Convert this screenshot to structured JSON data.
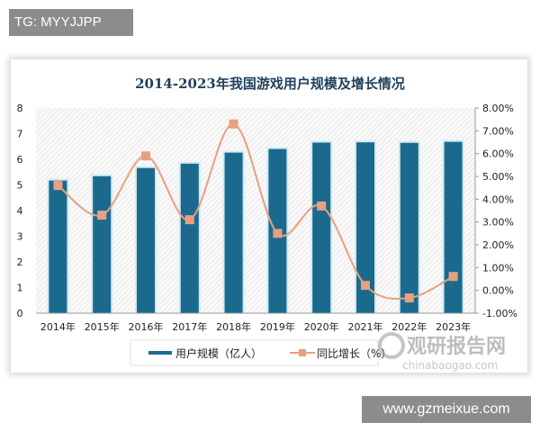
{
  "watermarks": {
    "top": "TG: MYYJJPP",
    "bottom": "www.gzmeixue.com",
    "logo_cn": "观研报告网",
    "logo_en": "chinabaogao.com"
  },
  "chart_data": {
    "type": "bar",
    "title": "2014-2023年我国游戏用户规模及增长情况",
    "categories": [
      "2014年",
      "2015年",
      "2016年",
      "2017年",
      "2018年",
      "2019年",
      "2020年",
      "2021年",
      "2022年",
      "2023年"
    ],
    "series": [
      {
        "name": "用户规模（亿人）",
        "type": "bar",
        "axis": "left",
        "color": "#1b6a8e",
        "values": [
          5.17,
          5.34,
          5.66,
          5.83,
          6.26,
          6.4,
          6.65,
          6.66,
          6.64,
          6.68
        ]
      },
      {
        "name": "同比增长（%）",
        "type": "line",
        "axis": "right",
        "color": "#e8a080",
        "values": [
          4.6,
          3.3,
          5.9,
          3.1,
          7.3,
          2.5,
          3.7,
          0.22,
          -0.33,
          0.61
        ]
      }
    ],
    "left_axis": {
      "ylim": [
        0,
        8
      ],
      "ticks": [
        "0",
        "1",
        "2",
        "3",
        "4",
        "5",
        "6",
        "7",
        "8"
      ]
    },
    "right_axis": {
      "ylim": [
        -1,
        8
      ],
      "ticks": [
        "-1.00%",
        "0.00%",
        "1.00%",
        "2.00%",
        "3.00%",
        "4.00%",
        "5.00%",
        "6.00%",
        "7.00%",
        "8.00%"
      ]
    },
    "legend": "bottom",
    "grid": false
  }
}
